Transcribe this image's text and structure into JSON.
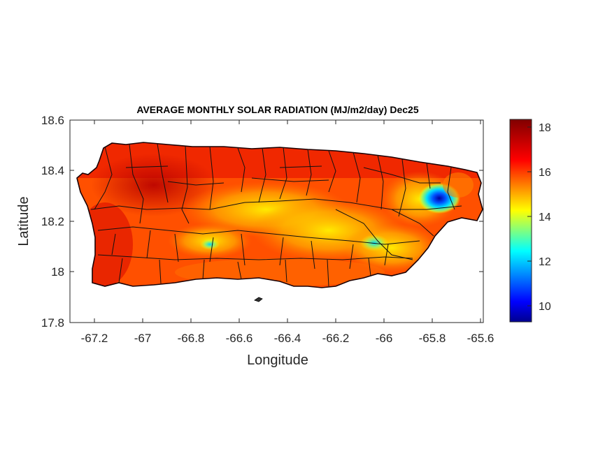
{
  "map": {
    "title": "AVERAGE MONTHLY SOLAR RADIATION (MJ/m2/day) Dec25",
    "xlabel": "Longitude",
    "ylabel": "Latitude",
    "x_ticks": [
      "-67.2",
      "-67",
      "-66.8",
      "-66.6",
      "-66.4",
      "-66.2",
      "-66",
      "-65.8",
      "-65.6"
    ],
    "y_ticks": [
      "18.6",
      "18.4",
      "18.2",
      "18",
      "17.8"
    ],
    "xlim": [
      -67.3,
      -65.58
    ],
    "ylim": [
      17.8,
      18.6
    ],
    "colorbar": {
      "ticks": [
        "18",
        "16",
        "14",
        "12",
        "10"
      ],
      "range": [
        9.3,
        18.5
      ],
      "colormap": "jet",
      "colors": [
        "#00008f",
        "#0000ff",
        "#00ffff",
        "#ffff00",
        "#ff0000",
        "#800000"
      ]
    },
    "region": "Puerto Rico",
    "dominant_values": "16-18 MJ/m2/day over most of the island; minimum near 10 at about -65.77, 18.28"
  }
}
